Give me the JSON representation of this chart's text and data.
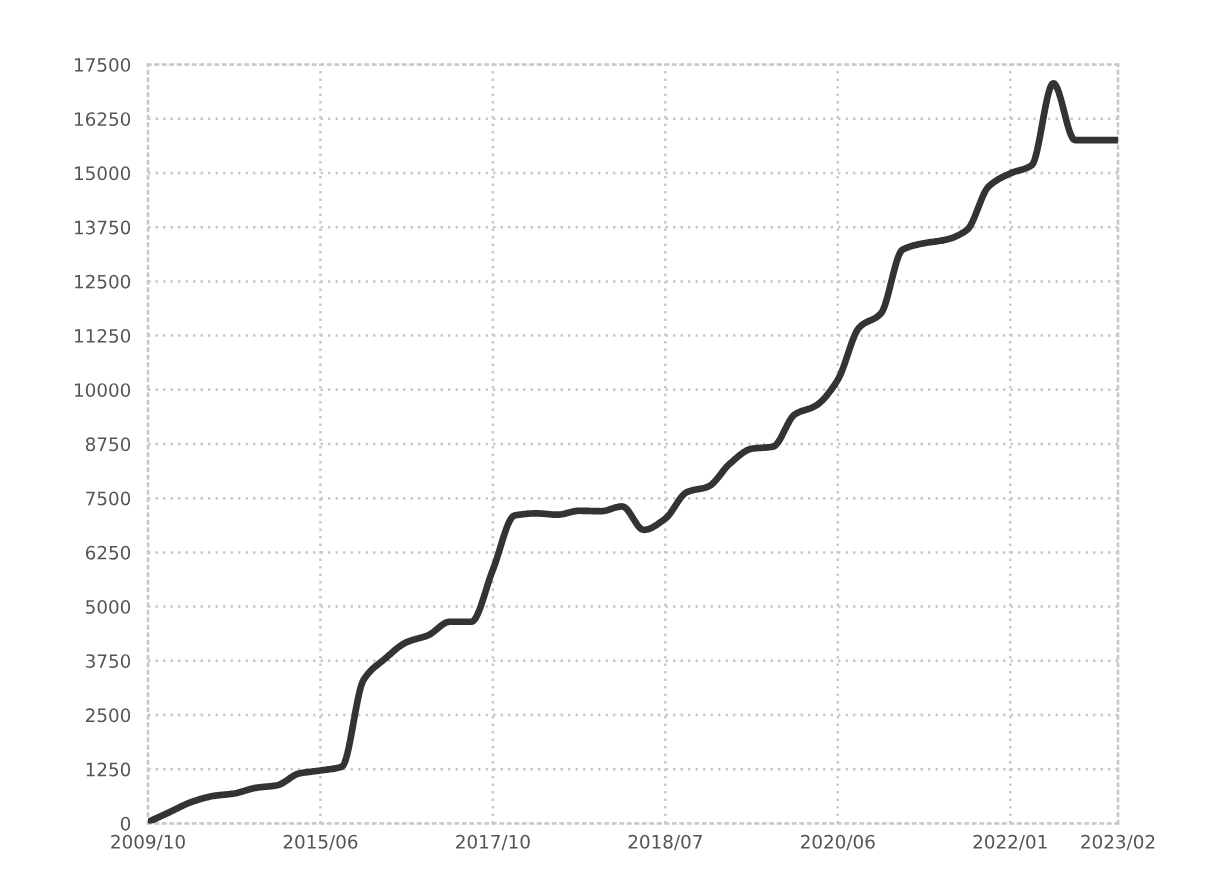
{
  "chart_data": {
    "type": "line",
    "categories": [
      "2009/10",
      null,
      null,
      null,
      null,
      null,
      null,
      null,
      "2015/06",
      null,
      null,
      null,
      null,
      null,
      null,
      null,
      "2017/10",
      null,
      null,
      null,
      null,
      null,
      null,
      null,
      "2018/07",
      null,
      null,
      null,
      null,
      null,
      null,
      null,
      "2020/06",
      null,
      null,
      null,
      null,
      null,
      null,
      null,
      "2022/01",
      null,
      null,
      null,
      null,
      "2023/02"
    ],
    "values": [
      30,
      260,
      490,
      630,
      690,
      820,
      880,
      1150,
      1220,
      1310,
      3310,
      3800,
      4180,
      4340,
      4650,
      4650,
      5850,
      7100,
      7150,
      7120,
      7210,
      7200,
      7310,
      6770,
      7030,
      7640,
      7770,
      8300,
      8640,
      8690,
      9430,
      9640,
      10230,
      11440,
      11760,
      13230,
      13380,
      13460,
      13690,
      14690,
      14990,
      15180,
      17070,
      15760,
      15760,
      15760
    ],
    "color": "#333333",
    "line_style": "solid",
    "ylim": [
      0,
      17500
    ],
    "yticks": [
      0,
      1250,
      2500,
      3750,
      5000,
      6250,
      7500,
      8750,
      10000,
      11250,
      12500,
      13750,
      15000,
      16250,
      17500
    ],
    "grid": true
  }
}
